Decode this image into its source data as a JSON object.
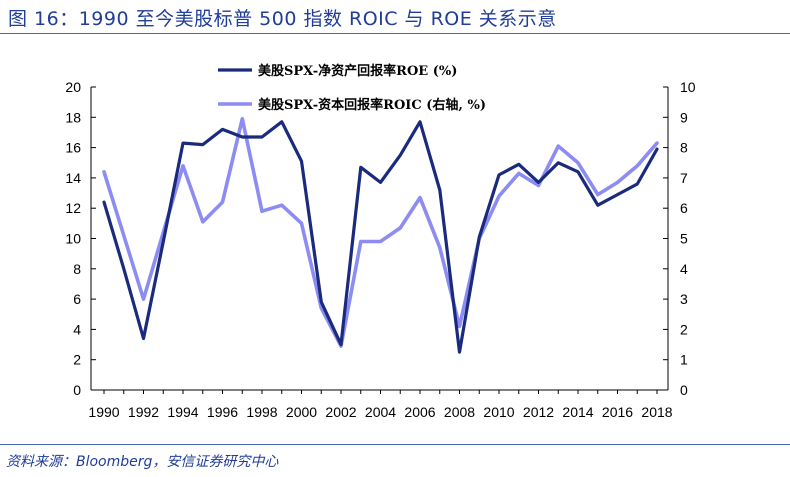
{
  "figure": {
    "title": "图 16：1990 至今美股标普 500 指数 ROIC 与 ROE 关系示意",
    "source": "资料来源：Bloomberg，安信证券研究中心"
  },
  "colors": {
    "roe": "#1a2a7c",
    "roic": "#8c8cf2",
    "title_text": "#1f3d99",
    "rule": "#4a67b5"
  },
  "chart_data": {
    "type": "line",
    "x": [
      1990,
      1991,
      1992,
      1993,
      1994,
      1995,
      1996,
      1997,
      1998,
      1999,
      2000,
      2001,
      2002,
      2003,
      2004,
      2005,
      2006,
      2007,
      2008,
      2009,
      2010,
      2011,
      2012,
      2013,
      2014,
      2015,
      2016,
      2017,
      2018
    ],
    "x_tick_labels": [
      "1990",
      "1992",
      "1994",
      "1996",
      "1998",
      "2000",
      "2002",
      "2004",
      "2006",
      "2008",
      "2010",
      "2012",
      "2014",
      "2016",
      "2018"
    ],
    "y_left_ticks": [
      "0",
      "2",
      "4",
      "6",
      "8",
      "10",
      "12",
      "14",
      "16",
      "18",
      "20"
    ],
    "y_right_ticks": [
      "0",
      "1",
      "2",
      "3",
      "4",
      "5",
      "6",
      "7",
      "8",
      "9",
      "10"
    ],
    "ylim_left": [
      0,
      20
    ],
    "ylim_right": [
      0,
      10
    ],
    "grid": false,
    "legend_position": "top-center",
    "series": [
      {
        "name": "美股SPX-净资产回报率ROE (%)",
        "axis": "left",
        "values": [
          12.4,
          8.0,
          3.4,
          9.8,
          16.3,
          16.2,
          17.2,
          16.7,
          16.7,
          17.7,
          15.1,
          5.8,
          3.0,
          14.7,
          13.7,
          15.5,
          17.7,
          13.2,
          2.5,
          10.1,
          14.2,
          14.9,
          13.7,
          15.0,
          14.4,
          12.2,
          12.9,
          13.6,
          15.9
        ]
      },
      {
        "name": "美股SPX-资本回报率ROIC (右轴, %)",
        "axis": "right",
        "values": [
          7.2,
          5.1,
          3.0,
          5.2,
          7.4,
          5.55,
          6.2,
          8.95,
          5.9,
          6.1,
          5.5,
          2.7,
          1.45,
          4.9,
          4.9,
          5.35,
          6.35,
          4.7,
          2.1,
          5.0,
          6.4,
          7.15,
          6.75,
          8.05,
          7.5,
          6.45,
          6.85,
          7.4,
          8.15
        ]
      }
    ]
  }
}
